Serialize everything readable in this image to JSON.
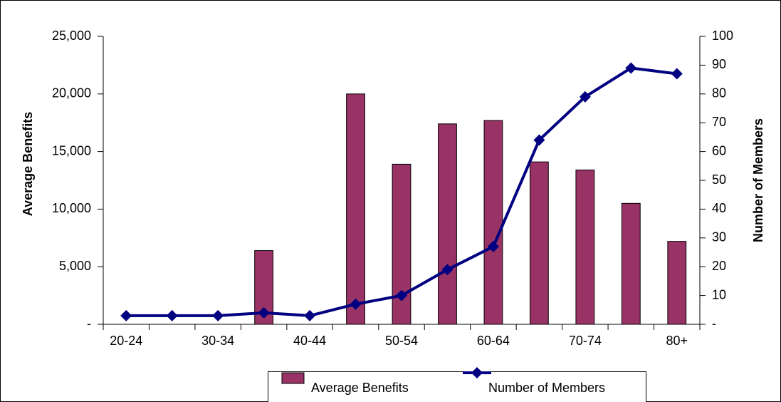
{
  "chart_data": {
    "type": "combo",
    "categories": [
      "20-24",
      null,
      "30-34",
      null,
      "40-44",
      null,
      "50-54",
      null,
      "60-64",
      null,
      "70-74",
      null,
      "80+"
    ],
    "series": [
      {
        "name": "Average Benefits",
        "type": "bar",
        "color": "#993366",
        "values": [
          null,
          null,
          null,
          6400,
          null,
          20000,
          13900,
          17400,
          17700,
          14100,
          13400,
          10500,
          7200
        ]
      },
      {
        "name": "Number of Members",
        "type": "line",
        "axis": "y2",
        "color": "#000080",
        "values": [
          3,
          3,
          3,
          4,
          3,
          7,
          10,
          19,
          27,
          64,
          79,
          89,
          87
        ]
      }
    ],
    "y_label": "Average Benefits",
    "y2_label": "Number of Members",
    "ylim": [
      0,
      25000
    ],
    "yticks": [
      {
        "value": 0,
        "label": "-"
      },
      {
        "value": 5000,
        "label": "5,000"
      },
      {
        "value": 10000,
        "label": "10,000"
      },
      {
        "value": 15000,
        "label": "15,000"
      },
      {
        "value": 20000,
        "label": "20,000"
      },
      {
        "value": 25000,
        "label": "25,000"
      }
    ],
    "y2lim": [
      0,
      100
    ],
    "y2ticks": [
      {
        "value": 0,
        "label": "-"
      },
      10,
      20,
      30,
      40,
      50,
      60,
      70,
      80,
      90,
      100
    ],
    "legend": "bottom",
    "grid": false
  }
}
